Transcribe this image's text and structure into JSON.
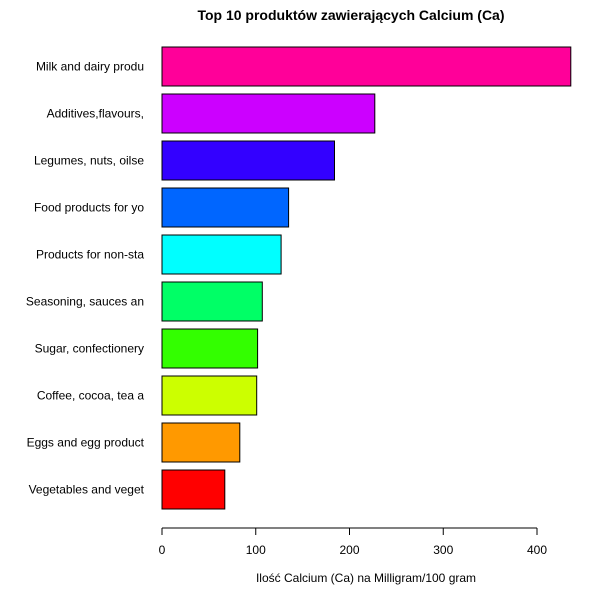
{
  "chart_data": {
    "type": "bar",
    "orientation": "horizontal",
    "title": "Top 10 produktów zawierających Calcium (Ca)",
    "xlabel": "Ilość Calcium (Ca) na Milligram/100 gram",
    "ylabel": "",
    "xlim": [
      0,
      420
    ],
    "xticks": [
      "0",
      "100",
      "200",
      "300",
      "400"
    ],
    "categories": [
      "Milk and dairy produ",
      "Additives,flavours,",
      "Legumes, nuts, oilse",
      "Food products for yo",
      "Products for non-sta",
      "Seasoning, sauces an",
      "Sugar, confectionery",
      "Coffee, cocoa, tea a",
      "Eggs and egg product",
      "Vegetables and veget"
    ],
    "values": [
      436,
      227,
      184,
      135,
      127,
      107,
      102,
      101,
      83,
      67
    ],
    "colors": [
      "#FF0099",
      "#CC00FF",
      "#3300FF",
      "#0066FF",
      "#00FFFF",
      "#00FF66",
      "#33FF00",
      "#CCFF00",
      "#FF9900",
      "#FF0000"
    ],
    "grid": false,
    "legend": "none"
  }
}
